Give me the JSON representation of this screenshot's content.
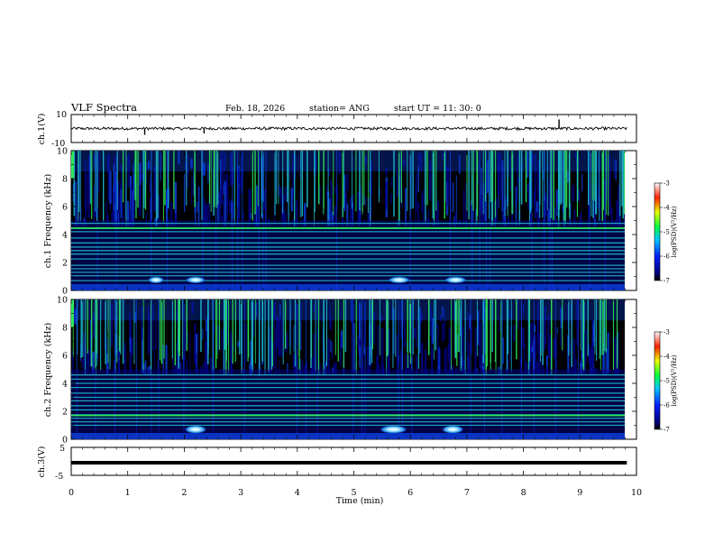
{
  "header": {
    "title": "VLF Spectra",
    "date": "Feb. 18, 2026",
    "station": "station= ANG",
    "start_ut": "start  UT =   11: 30: 0"
  },
  "colors": {
    "background": "#000000",
    "low": "#00007f",
    "mid_blue": "#0a3cd6",
    "cyan": "#1fb6c8",
    "green": "#2fe85a",
    "high": "#ff2020",
    "trace": "#000000"
  },
  "chart_data": [
    {
      "type": "line",
      "name": "ch1-waveform",
      "ylabel": "ch.1(V)",
      "ylim": [
        -10,
        10
      ],
      "yticks": [
        10,
        -10
      ],
      "ytick_labels": [
        "10",
        "-10"
      ],
      "baseline": 0,
      "noise_amplitude": 1,
      "spikes": [
        {
          "t": 1.3,
          "value": -4.5
        },
        {
          "t": 2.35,
          "value": -3.5
        },
        {
          "t": 8.63,
          "value": 6.5
        }
      ]
    },
    {
      "type": "heatmap",
      "name": "ch1-spectrogram",
      "xlabel": "Time (min)",
      "ylabel": "ch.1 Frequency (kHz)",
      "xlim": [
        0,
        10
      ],
      "ylim": [
        0,
        10
      ],
      "data_end_min": 9.83,
      "yticks": [
        0,
        2,
        4,
        6,
        8,
        10
      ],
      "ytick_labels": [
        "0",
        "2",
        "4",
        "6",
        "8",
        "10"
      ],
      "colorbar": {
        "label": "log(PSD)(V²/Hz)",
        "range": [
          -7,
          -3
        ],
        "ticks": [
          -3,
          -4,
          -5,
          -6,
          -7
        ],
        "tick_labels": [
          "-3",
          "-4",
          "-5",
          "-6",
          "-7"
        ]
      },
      "emission_lines_khz": [
        4.8,
        4.45,
        4.2,
        3.75,
        3.4,
        3.1,
        2.85,
        2.6,
        2.25,
        1.8,
        1.55,
        1.3,
        1.05,
        0.7
      ],
      "bright_line_khz": [
        4.45
      ],
      "bursts_min": [
        {
          "t": 1.5,
          "f": 0.75,
          "rx": 0.15,
          "ry": 0.25
        },
        {
          "t": 2.2,
          "f": 0.75,
          "rx": 0.18,
          "ry": 0.25
        },
        {
          "t": 5.8,
          "f": 0.75,
          "rx": 0.2,
          "ry": 0.25
        },
        {
          "t": 6.8,
          "f": 0.75,
          "rx": 0.2,
          "ry": 0.25
        }
      ]
    },
    {
      "type": "heatmap",
      "name": "ch2-spectrogram",
      "xlabel": "Time (min)",
      "ylabel": "ch.2 Frequency (kHz)",
      "xlim": [
        0,
        10
      ],
      "ylim": [
        0,
        10
      ],
      "data_end_min": 9.83,
      "yticks": [
        0,
        2,
        4,
        6,
        8,
        10
      ],
      "ytick_labels": [
        "0",
        "2",
        "4",
        "6",
        "8",
        "10"
      ],
      "colorbar": {
        "label": "log(PSD)(V²/Hz)",
        "range": [
          -7,
          -3
        ],
        "ticks": [
          -3,
          -4,
          -5,
          -6,
          -7
        ],
        "tick_labels": [
          "-3",
          "-4",
          "-5",
          "-6",
          "-7"
        ]
      },
      "emission_lines_khz": [
        4.6,
        4.3,
        4.0,
        3.7,
        3.3,
        3.0,
        2.75,
        2.4,
        2.1,
        1.75,
        1.5,
        1.25,
        1.0
      ],
      "bright_line_khz": [
        1.7
      ],
      "bursts_min": [
        {
          "t": 2.2,
          "f": 0.7,
          "rx": 0.2,
          "ry": 0.3
        },
        {
          "t": 5.7,
          "f": 0.7,
          "rx": 0.25,
          "ry": 0.3
        },
        {
          "t": 6.75,
          "f": 0.7,
          "rx": 0.2,
          "ry": 0.3
        }
      ]
    },
    {
      "type": "line",
      "name": "ch3-waveform",
      "xlabel": "Time (min)",
      "ylabel": "ch.3(V)",
      "xlim": [
        0,
        10
      ],
      "xticks": [
        0,
        1,
        2,
        3,
        4,
        5,
        6,
        7,
        8,
        9,
        10
      ],
      "xtick_labels": [
        "0",
        "1",
        "2",
        "3",
        "4",
        "5",
        "6",
        "7",
        "8",
        "9",
        "10"
      ],
      "ylim": [
        -5,
        5
      ],
      "yticks": [
        5,
        -5
      ],
      "ytick_labels": [
        "5",
        "-5"
      ],
      "baseline": -0.5
    }
  ]
}
